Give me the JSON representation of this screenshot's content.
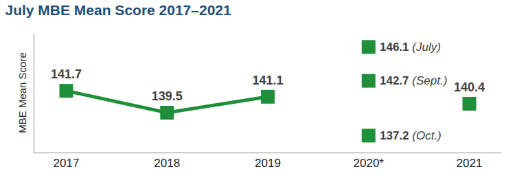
{
  "chart_data": {
    "type": "line",
    "title": "July MBE Mean Score 2017–2021",
    "y_label": "MBE Mean Score",
    "categories": [
      "2017",
      "2018",
      "2019",
      "2020*",
      "2021"
    ],
    "values": [
      141.7,
      139.5,
      141.1,
      null,
      140.4
    ],
    "extra_points": [
      {
        "category": "2020*",
        "value": 146.1,
        "note": "(July)"
      },
      {
        "category": "2020*",
        "value": 142.7,
        "note": "(Sept.)"
      },
      {
        "category": "2020*",
        "value": 137.2,
        "note": "(Oct.)"
      }
    ],
    "color": "#1f8f3a",
    "marker": "square",
    "ylim": [
      135.5,
      147.5
    ],
    "grid": false,
    "data_labels": true,
    "tick_labels": "x"
  }
}
